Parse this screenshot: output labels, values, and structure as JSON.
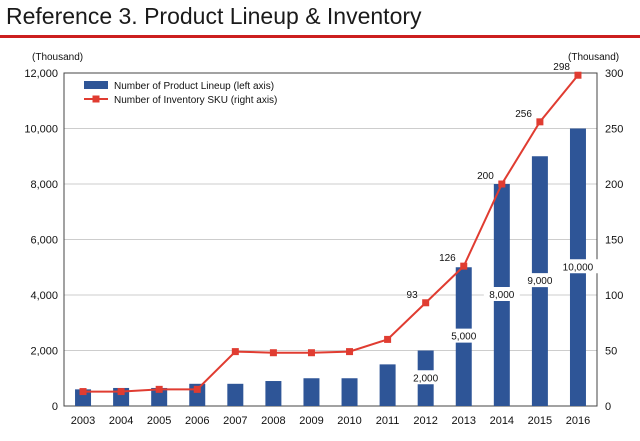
{
  "header": {
    "title": "Reference 3. Product Lineup & Inventory",
    "rule_color": "#cc1f1f"
  },
  "chart_data": {
    "type": "bar",
    "categories": [
      "2003",
      "2004",
      "2005",
      "2006",
      "2007",
      "2008",
      "2009",
      "2010",
      "2011",
      "2012",
      "2013",
      "2014",
      "2015",
      "2016"
    ],
    "left_axis": {
      "unit": "(Thousand)",
      "ylim": [
        0,
        12000
      ],
      "ticks": [
        "0",
        "2,000",
        "4,000",
        "6,000",
        "8,000",
        "10,000",
        "12,000"
      ]
    },
    "right_axis": {
      "unit": "(Thousand)",
      "ylim": [
        0,
        300
      ],
      "ticks": [
        "0",
        "50",
        "100",
        "150",
        "200",
        "250",
        "300"
      ]
    },
    "series": [
      {
        "name": "Number of Product Lineup (left axis)",
        "kind": "bar",
        "axis": "left",
        "color": "#2e5597",
        "values": [
          600,
          650,
          650,
          800,
          800,
          900,
          1000,
          1000,
          1500,
          2000,
          5000,
          8000,
          9000,
          10000
        ],
        "data_labels": [
          "",
          "",
          "",
          "",
          "",
          "",
          "",
          "",
          "",
          "2,000",
          "5,000",
          "8,000",
          "9,000",
          "10,000"
        ]
      },
      {
        "name": "Number of Inventory SKU (right axis)",
        "kind": "line",
        "axis": "right",
        "color": "#e03c31",
        "values": [
          13,
          13,
          15,
          15,
          49,
          48,
          48,
          49,
          60,
          93,
          126,
          200,
          256,
          298
        ],
        "data_labels": [
          "",
          "",
          "",
          "",
          "",
          "",
          "",
          "",
          "",
          "93",
          "126",
          "200",
          "256",
          "298"
        ]
      }
    ],
    "legend_position": "top-left",
    "grid": true
  }
}
